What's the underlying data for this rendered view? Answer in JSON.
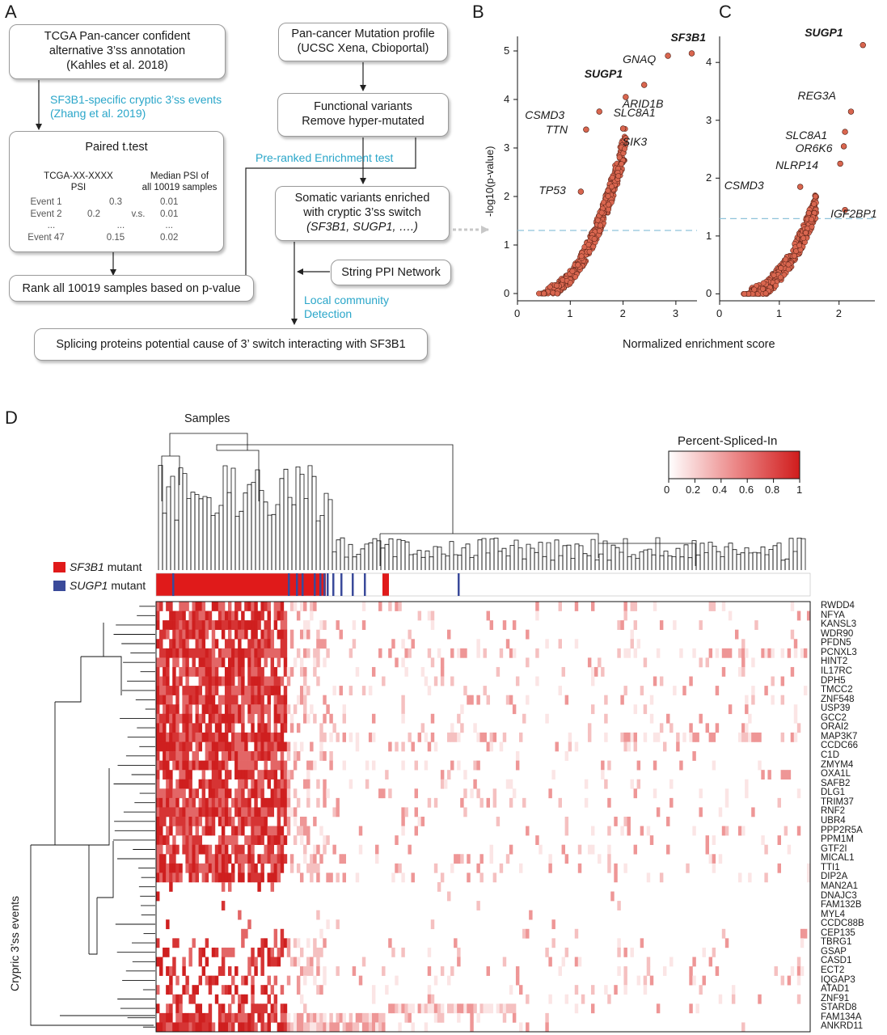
{
  "panels": {
    "A": "A",
    "B": "B",
    "C": "C",
    "D": "D"
  },
  "flow": {
    "tcga_box": [
      "TCGA Pan-cancer confident",
      "alternative 3’ss annotation",
      "(Kahles et al. 2018)"
    ],
    "sf3b1_events": [
      "SF3B1-specific cryptic 3’ss events",
      "(Zhang et al. 2019)"
    ],
    "ttest": {
      "title": "Paired t.test",
      "left_head": [
        "TCGA-XX-XXXX",
        "PSI"
      ],
      "right_head": [
        "Median PSI of",
        "all 10019 samples"
      ],
      "rows": [
        {
          "event": "Event 1",
          "psi": "0.3",
          "median": "0.01"
        },
        {
          "event": "Event 2",
          "psi": "0.2",
          "median": "0.01"
        },
        {
          "event": "...",
          "psi": "...",
          "median": "..."
        },
        {
          "event": "Event 47",
          "psi": "0.15",
          "median": "0.02"
        }
      ],
      "vs": "v.s."
    },
    "rank_box": "Rank all 10019 samples based on p-value",
    "mutation_box": [
      "Pan-cancer Mutation profile",
      "(UCSC Xena, Cbioportal)"
    ],
    "functional_box": [
      "Functional variants",
      "Remove hyper-mutated"
    ],
    "preranked": "Pre-ranked Enrichment test",
    "somatic_box": [
      "Somatic variants enriched",
      "with cryptic 3’ss switch",
      "(SF3B1, SUGP1, ….)"
    ],
    "string_box": "String PPI Network",
    "local_community": [
      "Local community",
      "Detection"
    ],
    "splicing_box": "Splicing proteins potential cause of 3’ switch interacting with SF3B1"
  },
  "chart_data": [
    {
      "type": "scatter",
      "panel": "B",
      "xlabel": "Normalized enrichment score",
      "ylabel": "-log10(p-value)",
      "xlim": [
        0,
        3.4
      ],
      "ylim": [
        -0.15,
        5.3
      ],
      "xticks": [
        "0",
        "1",
        "2",
        "3"
      ],
      "yticks": [
        "0",
        "1",
        "2",
        "3",
        "4",
        "5"
      ],
      "threshold": 1.3,
      "labeled_points": [
        {
          "name": "SF3B1",
          "x": 3.3,
          "y": 4.95,
          "bold": true
        },
        {
          "name": "GNAQ",
          "x": 2.85,
          "y": 4.9,
          "bold": false
        },
        {
          "name": "SUGP1",
          "x": 2.4,
          "y": 4.3,
          "bold": true
        },
        {
          "name": "ARID1B",
          "x": 2.05,
          "y": 4.05,
          "bold": false
        },
        {
          "name": "CSMD3",
          "x": 1.55,
          "y": 3.75,
          "bold": false
        },
        {
          "name": "SLC8A1",
          "x": 2.0,
          "y": 3.4,
          "bold": false
        },
        {
          "name": "TTN",
          "x": 1.3,
          "y": 3.38,
          "bold": false
        },
        {
          "name": "SIK3",
          "x": 2.05,
          "y": 3.2,
          "bold": false
        },
        {
          "name": "TP53",
          "x": 1.2,
          "y": 2.1,
          "bold": false
        }
      ]
    },
    {
      "type": "scatter",
      "panel": "C",
      "xlabel": "Normalized enrichment score",
      "ylabel": "-log10(p-value)",
      "xlim": [
        0,
        2.6
      ],
      "ylim": [
        -0.12,
        4.45
      ],
      "xticks": [
        "0",
        "1",
        "2"
      ],
      "yticks": [
        "0",
        "1",
        "2",
        "3",
        "4"
      ],
      "threshold": 1.3,
      "labeled_points": [
        {
          "name": "SUGP1",
          "x": 2.4,
          "y": 4.3,
          "bold": true
        },
        {
          "name": "REG3A",
          "x": 2.2,
          "y": 3.15,
          "bold": false
        },
        {
          "name": "SLC8A1",
          "x": 2.1,
          "y": 2.8,
          "bold": false
        },
        {
          "name": "OR6K6",
          "x": 2.08,
          "y": 2.55,
          "bold": false
        },
        {
          "name": "NLRP14",
          "x": 2.02,
          "y": 2.25,
          "bold": false
        },
        {
          "name": "CSMD3",
          "x": 1.35,
          "y": 1.85,
          "bold": false
        },
        {
          "name": "IGF2BP1",
          "x": 2.1,
          "y": 1.45,
          "bold": false
        }
      ]
    },
    {
      "type": "heatmap",
      "panel": "D",
      "title": "Samples",
      "ylabel": "Crypric 3’ss events",
      "colorbar": {
        "title": "Percent-Spliced-In",
        "ticks": [
          "0",
          "0.2",
          "0.4",
          "0.6",
          "0.8",
          "1"
        ],
        "low": "#ffffff",
        "high": "#d01c1c"
      },
      "legend": [
        {
          "label_gene": "SF3B1",
          "label_rest": " mutant",
          "color": "#e01a1a"
        },
        {
          "label_gene": "SUGP1",
          "label_rest": " mutant",
          "color": "#3a4a9a"
        }
      ],
      "rows": [
        "RWDD4",
        "NFYA",
        "KANSL3",
        "WDR90",
        "PFDN5",
        "PCNXL3",
        "HINT2",
        "IL17RC",
        "DPH5",
        "TMCC2",
        "ZNF548",
        "USP39",
        "GCC2",
        "ORAI2",
        "MAP3K7",
        "CCDC66",
        "C1D",
        "ZMYM4",
        "OXA1L",
        "SAFB2",
        "DLG1",
        "TRIM37",
        "RNF2",
        "UBR4",
        "PPP2R5A",
        "PPM1M",
        "GTF2I",
        "MICAL1",
        "TTI1",
        "DIP2A",
        "MAN2A1",
        "DNAJC3",
        "FAM132B",
        "MYL4",
        "CCDC88B",
        "CEP135",
        "TBRG1",
        "GSAP",
        "CASD1",
        "ECT2",
        "IQGAP3",
        "ATAD1",
        "ZNF91",
        "STARD8",
        "FAM134A",
        "ANKRD11"
      ]
    }
  ]
}
